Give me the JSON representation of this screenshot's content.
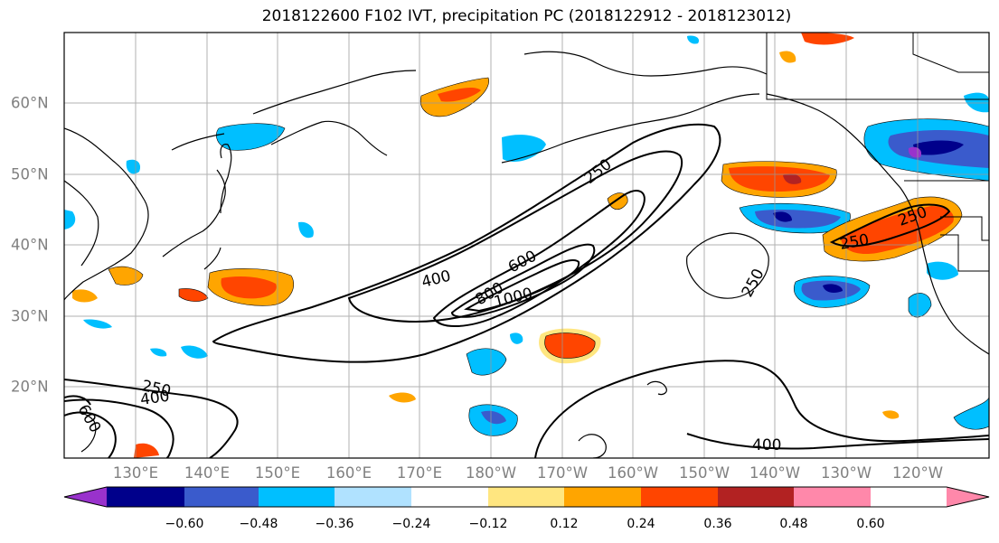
{
  "title": "2018122600 F102 IVT, precipitation PC (2018122912 - 2018123012)",
  "lon_labels": [
    "130°E",
    "140°E",
    "150°E",
    "160°E",
    "170°E",
    "180°W",
    "170°W",
    "160°W",
    "150°W",
    "140°W",
    "130°W",
    "120°W"
  ],
  "lat_labels": [
    "60°N",
    "50°N",
    "40°N",
    "30°N",
    "20°N"
  ],
  "colorbar": {
    "colors": [
      "#9932cc",
      "#00008b",
      "#3a5bcc",
      "#00bfff",
      "#b0e2ff",
      "#ffffff",
      "#ffe680",
      "#ffa500",
      "#ff4500",
      "#b22222",
      "#ff88aa"
    ],
    "ticks": [
      "−0.60",
      "−0.48",
      "−0.36",
      "−0.24",
      "−0.12",
      "0.12",
      "0.24",
      "0.36",
      "0.48",
      "0.60"
    ]
  },
  "contour_labels": [
    "250",
    "400",
    "600",
    "800",
    "1000",
    "250",
    "250",
    "250",
    "250",
    "400",
    "600",
    "400"
  ]
}
